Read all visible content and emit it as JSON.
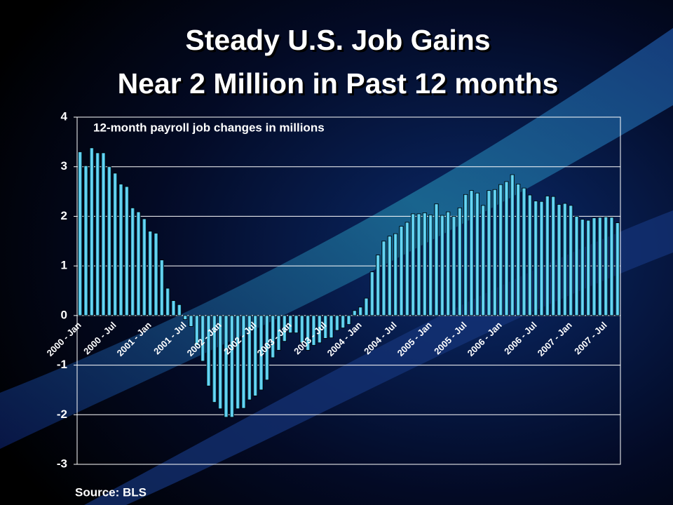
{
  "chart_data": {
    "type": "bar",
    "title": [
      "Steady U.S. Job Gains",
      "Near 2 Million in Past 12 months"
    ],
    "subtitle": "12-month payroll job changes in millions",
    "source": "Source: BLS",
    "color": "#3cc8e8",
    "grid": true,
    "ylim": [
      -3,
      4
    ],
    "yticks": [
      -3,
      -2,
      -1,
      0,
      1,
      2,
      3,
      4
    ],
    "categories": [
      "2000 - Jan",
      null,
      null,
      null,
      null,
      null,
      "2000 - Jul",
      null,
      null,
      null,
      null,
      null,
      "2001 - Jan",
      null,
      null,
      null,
      null,
      null,
      "2001 - Jul",
      null,
      null,
      null,
      null,
      null,
      "2002 - Jan",
      null,
      null,
      null,
      null,
      null,
      "2002 - Jul",
      null,
      null,
      null,
      null,
      null,
      "2003 - Jan",
      null,
      null,
      null,
      null,
      null,
      "2003 - Jul",
      null,
      null,
      null,
      null,
      null,
      "2004 - Jan",
      null,
      null,
      null,
      null,
      null,
      "2004 - Jul",
      null,
      null,
      null,
      null,
      null,
      "2005 - Jan",
      null,
      null,
      null,
      null,
      null,
      "2005 - Jul",
      null,
      null,
      null,
      null,
      null,
      "2006 - Jan",
      null,
      null,
      null,
      null,
      null,
      "2006 - Jul",
      null,
      null,
      null,
      null,
      null,
      "2007 - Jan",
      null,
      null,
      null,
      null,
      null,
      "2007 - Jul",
      null,
      null
    ],
    "values": [
      3.3,
      3.02,
      3.38,
      3.28,
      3.28,
      3.0,
      2.87,
      2.65,
      2.6,
      2.17,
      2.09,
      1.95,
      1.7,
      1.66,
      1.12,
      0.55,
      0.3,
      0.22,
      -0.08,
      -0.22,
      -0.6,
      -0.92,
      -1.42,
      -1.75,
      -1.88,
      -2.05,
      -2.05,
      -1.88,
      -1.87,
      -1.7,
      -1.62,
      -1.5,
      -1.3,
      -0.85,
      -0.7,
      -0.52,
      -0.35,
      -0.35,
      -0.55,
      -0.7,
      -0.6,
      -0.55,
      -0.46,
      -0.45,
      -0.3,
      -0.25,
      -0.18,
      0.1,
      0.17,
      0.35,
      0.88,
      1.22,
      1.5,
      1.6,
      1.65,
      1.8,
      1.88,
      2.05,
      2.05,
      2.07,
      2.03,
      2.25,
      2.02,
      2.09,
      2.0,
      2.17,
      2.44,
      2.52,
      2.47,
      2.22,
      2.52,
      2.54,
      2.64,
      2.7,
      2.84,
      2.65,
      2.57,
      2.43,
      2.31,
      2.3,
      2.41,
      2.4,
      2.24,
      2.26,
      2.22,
      2.0,
      1.94,
      1.92,
      1.97,
      1.98,
      1.99,
      1.98,
      1.87
    ]
  }
}
